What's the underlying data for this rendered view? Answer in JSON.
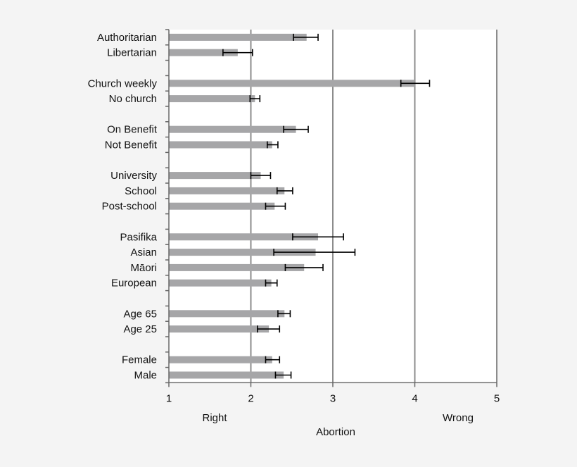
{
  "chart_data": {
    "type": "bar",
    "orientation": "horizontal",
    "xlabel": "Abortion",
    "x_end_labels": {
      "low": "Right",
      "high": "Wrong"
    },
    "xlim": [
      1,
      5
    ],
    "xticks": [
      1,
      2,
      3,
      4,
      5
    ],
    "grid": "vertical",
    "colors": {
      "bar": "#a6a6a8",
      "grid": "#8c8c8c",
      "error": "#000000"
    },
    "categories": [
      "Authoritarian",
      "Libertarian",
      "",
      "Church weekly",
      "No church",
      "",
      "On Benefit",
      "Not Benefit",
      "",
      "University",
      "School",
      "Post-school",
      "",
      "Pasifika",
      "Asian",
      "Māori",
      "European",
      "",
      "Age 65",
      "Age 25",
      "",
      "Female",
      "Male"
    ],
    "values": [
      2.68,
      1.84,
      null,
      4.0,
      2.05,
      null,
      2.55,
      2.26,
      null,
      2.12,
      2.41,
      2.29,
      null,
      2.82,
      2.79,
      2.65,
      2.25,
      null,
      2.41,
      2.22,
      null,
      2.26,
      2.4
    ],
    "error_low": [
      2.52,
      1.66,
      null,
      3.83,
      1.99,
      null,
      2.4,
      2.2,
      null,
      2.0,
      2.32,
      2.18,
      null,
      2.51,
      2.28,
      2.42,
      2.18,
      null,
      2.33,
      2.08,
      null,
      2.18,
      2.3
    ],
    "error_high": [
      2.82,
      2.02,
      null,
      4.18,
      2.11,
      null,
      2.7,
      2.33,
      null,
      2.24,
      2.51,
      2.42,
      null,
      3.13,
      3.27,
      2.88,
      2.32,
      null,
      2.48,
      2.35,
      null,
      2.35,
      2.49
    ]
  }
}
